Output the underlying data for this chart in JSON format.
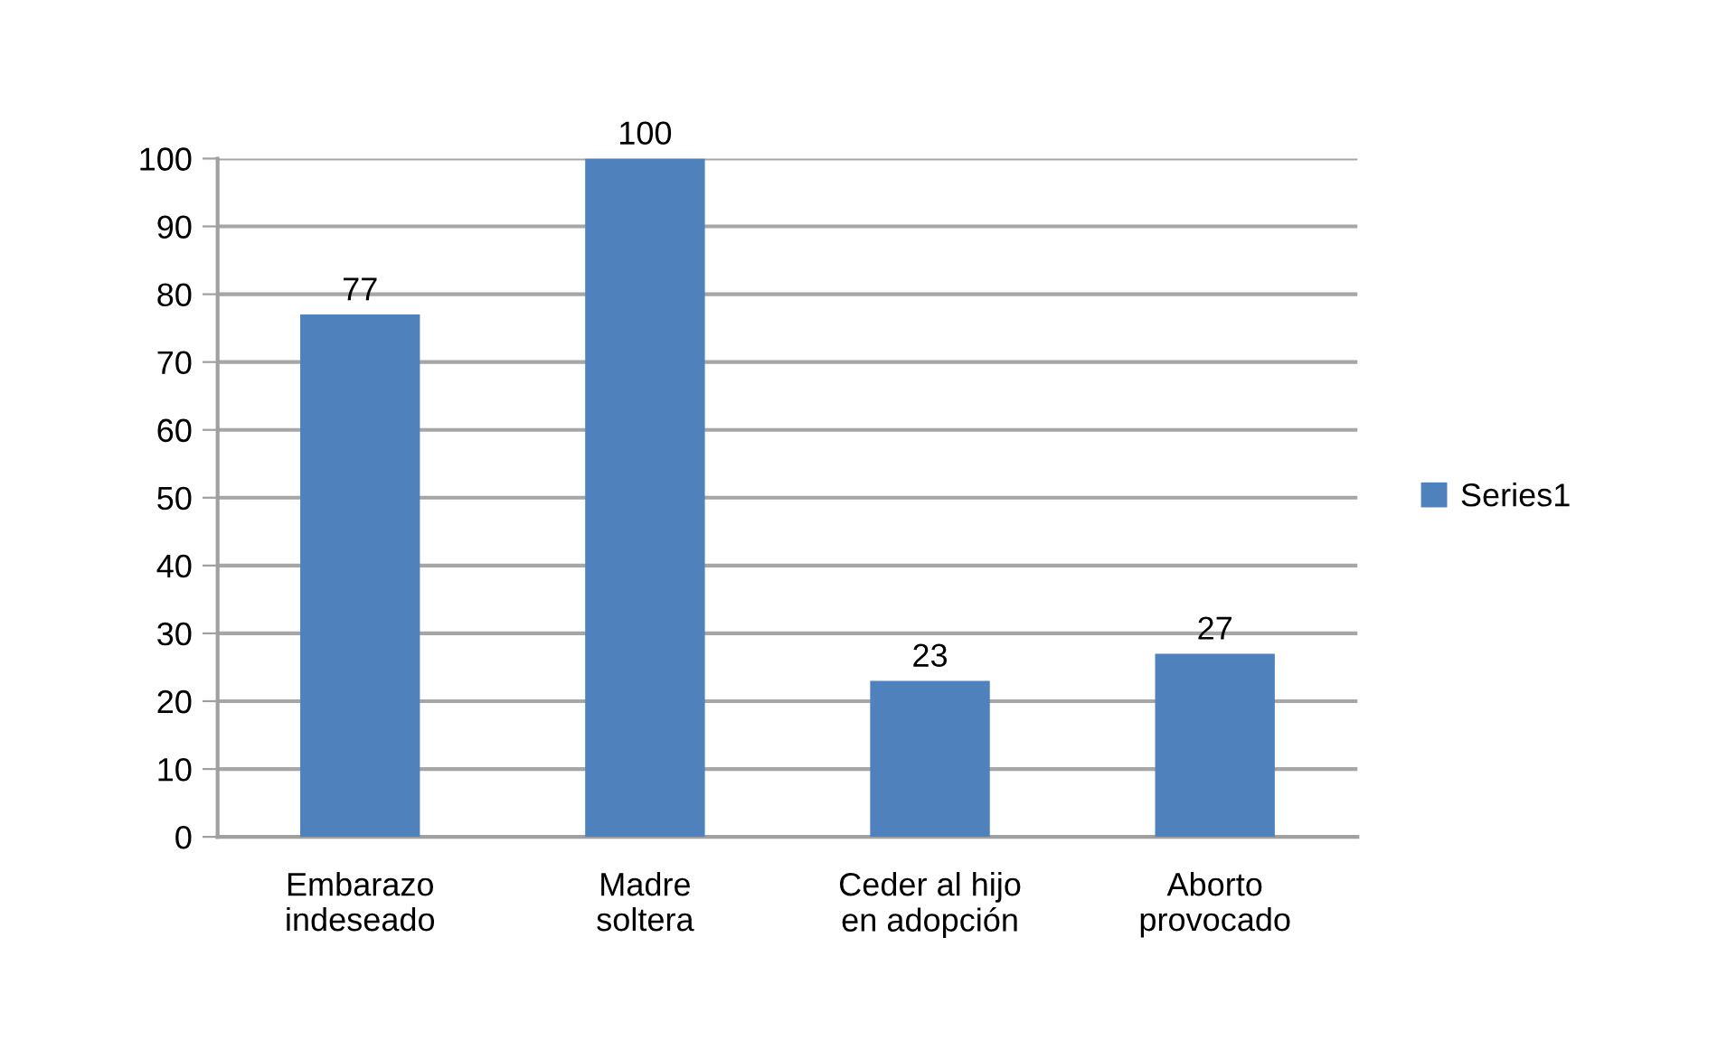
{
  "chart_data": {
    "type": "bar",
    "categories": [
      "Embarazo\nindeseado",
      "Madre\nsoltera",
      "Ceder al hijo\nen adopción",
      "Aborto\nprovocado"
    ],
    "series": [
      {
        "name": "Series1",
        "color": "#4f81bd",
        "values": [
          77,
          100,
          23,
          27
        ]
      }
    ],
    "ylim": [
      0,
      100
    ],
    "yticks": [
      0,
      10,
      20,
      30,
      40,
      50,
      60,
      70,
      80,
      90,
      100
    ],
    "grid": "y",
    "legend": "right",
    "data_labels": true
  }
}
